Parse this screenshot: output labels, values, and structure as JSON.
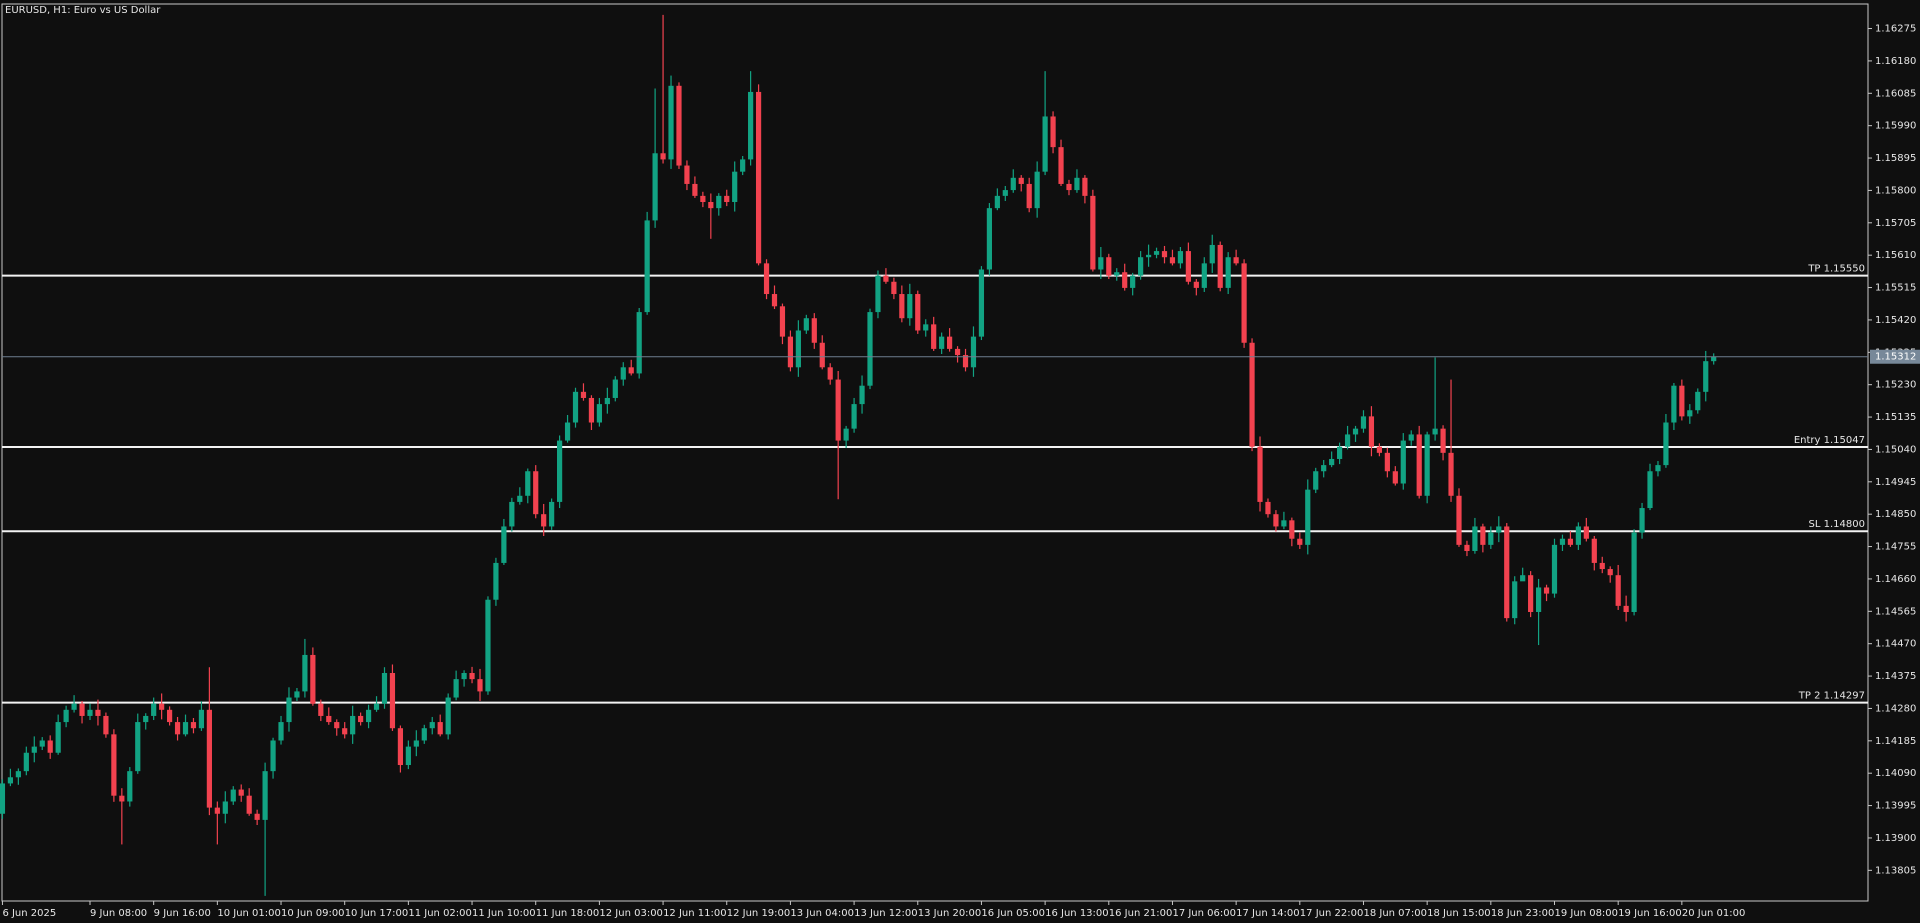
{
  "chart_data": {
    "type": "candlestick",
    "title": "EURUSD, H1:  Euro vs US Dollar",
    "up_color": "#12a383",
    "down_color": "#f2424f",
    "background": "#0f0f0f",
    "grid": false,
    "ylim": [
      1.13715,
      1.16347
    ],
    "yticks": [
      1.16275,
      {
        "value": 1.1618,
        "label": "1.16180"
      },
      1.16085,
      {
        "value": 1.1599,
        "label": "1.15990"
      },
      1.15895,
      {
        "value": 1.158,
        "label": "1.15800"
      },
      1.15705,
      {
        "value": 1.1561,
        "label": "1.15610"
      },
      1.15515,
      {
        "value": 1.1542,
        "label": "1.15420"
      },
      1.15325,
      {
        "value": 1.1523,
        "label": "1.15230"
      },
      1.15135,
      {
        "value": 1.1504,
        "label": "1.15040"
      },
      1.14945,
      {
        "value": 1.1485,
        "label": "1.14850"
      },
      1.14755,
      {
        "value": 1.1466,
        "label": "1.14660"
      },
      1.14565,
      {
        "value": 1.1447,
        "label": "1.14470"
      },
      1.14375,
      {
        "value": 1.1428,
        "label": "1.14280"
      },
      1.14185,
      {
        "value": 1.1409,
        "label": "1.14090"
      },
      1.13995,
      {
        "value": 1.139,
        "label": "1.13900"
      },
      1.13805
    ],
    "levels": [
      {
        "label": "TP 1.15550",
        "value": 1.1555
      },
      {
        "label": "Entry 1.15047",
        "value": 1.15047
      },
      {
        "label": "SL 1.14800",
        "value": 1.148
      },
      {
        "label": "TP 2 1.14297",
        "value": 1.14297
      }
    ],
    "categories": [
      "6 Jun 2025",
      null,
      null,
      null,
      null,
      null,
      null,
      null,
      null,
      null,
      null,
      "9 Jun 08:00",
      null,
      null,
      null,
      null,
      null,
      null,
      null,
      "9 Jun 16:00",
      null,
      null,
      null,
      null,
      null,
      null,
      null,
      "10 Jun 01:00",
      null,
      null,
      null,
      null,
      null,
      null,
      null,
      "10 Jun 09:00",
      null,
      null,
      null,
      null,
      null,
      null,
      null,
      "10 Jun 17:00",
      null,
      null,
      null,
      null,
      null,
      null,
      null,
      "11 Jun 02:00",
      null,
      null,
      null,
      null,
      null,
      null,
      null,
      "11 Jun 10:00",
      null,
      null,
      null,
      null,
      null,
      null,
      null,
      "11 Jun 18:00",
      null,
      null,
      null,
      null,
      null,
      null,
      null,
      "12 Jun 03:00",
      null,
      null,
      null,
      null,
      null,
      null,
      null,
      "12 Jun 11:00",
      null,
      null,
      null,
      null,
      null,
      null,
      null,
      "12 Jun 19:00",
      null,
      null,
      null,
      null,
      null,
      null,
      null,
      "13 Jun 04:00",
      null,
      null,
      null,
      null,
      null,
      null,
      null,
      "13 Jun 12:00",
      null,
      null,
      null,
      null,
      null,
      null,
      null,
      "13 Jun 20:00",
      null,
      null,
      null,
      null,
      null,
      null,
      null,
      "16 Jun 05:00",
      null,
      null,
      null,
      null,
      null,
      null,
      null,
      "16 Jun 13:00",
      null,
      null,
      null,
      null,
      null,
      null,
      null,
      "16 Jun 21:00",
      null,
      null,
      null,
      null,
      null,
      null,
      null,
      "17 Jun 06:00",
      null,
      null,
      null,
      null,
      null,
      null,
      null,
      "17 Jun 14:00",
      null,
      null,
      null,
      null,
      null,
      null,
      null,
      "17 Jun 22:00",
      null,
      null,
      null,
      null,
      null,
      null,
      null,
      "18 Jun 07:00",
      null,
      null,
      null,
      null,
      null,
      null,
      null,
      "18 Jun 15:00",
      null,
      null,
      null,
      null,
      null,
      null,
      null,
      "18 Jun 23:00",
      null,
      null,
      null,
      null,
      null,
      null,
      null,
      "19 Jun 08:00",
      null,
      null,
      null,
      null,
      null,
      null,
      null,
      "19 Jun 16:00",
      null,
      null,
      null,
      null,
      null,
      null,
      null,
      "20 Jun 01:00",
      null,
      null,
      null,
      null
    ],
    "open": [
      1.13971,
      1.1406,
      1.14078,
      1.14096,
      1.1415,
      1.14168,
      1.14186,
      1.1415,
      1.1424,
      1.14276,
      1.14294,
      1.14258,
      1.14276,
      1.14258,
      1.14204,
      1.14024,
      1.14007,
      1.14096,
      1.1424,
      1.14258,
      1.14294,
      1.14276,
      1.1424,
      1.14204,
      1.1424,
      1.14222,
      1.14276,
      1.13989,
      1.13971,
      1.14007,
      1.14042,
      1.14024,
      1.13971,
      1.13953,
      1.14096,
      1.14186,
      1.1424,
      1.14312,
      1.1433,
      1.14437,
      1.14294,
      1.14258,
      1.1424,
      1.14222,
      1.14204,
      1.14258,
      1.1424,
      1.14276,
      1.14294,
      1.14384,
      1.14222,
      1.14114,
      1.14168,
      1.14186,
      1.14222,
      1.1424,
      1.14204,
      1.14312,
      1.14366,
      1.14384,
      1.14366,
      1.1433,
      1.14599,
      1.14707,
      1.14814,
      1.14886,
      1.14904,
      1.14976,
      1.1485,
      1.14814,
      1.14886,
      1.15066,
      1.15119,
      1.15209,
      1.15191,
      1.15119,
      1.15173,
      1.15191,
      1.15245,
      1.15281,
      1.15263,
      1.15443,
      1.15712,
      1.15909,
      1.15891,
      1.16107,
      1.15873,
      1.15819,
      1.15784,
      1.15766,
      1.15748,
      1.15784,
      1.15766,
      1.15855,
      1.15891,
      1.16089,
      1.15586,
      1.15496,
      1.1546,
      1.15371,
      1.15281,
      1.15389,
      1.15425,
      1.15353,
      1.15281,
      1.15245,
      1.15066,
      1.15101,
      1.15173,
      1.15227,
      1.15443,
      1.1555,
      1.15532,
      1.15496,
      1.15425,
      1.15496,
      1.15389,
      1.15407,
      1.15335,
      1.15371,
      1.15335,
      1.15317,
      1.15281,
      1.15371,
      1.15568,
      1.15748,
      1.15784,
      1.15801,
      1.15837,
      1.15819,
      1.15748,
      1.15855,
      1.16017,
      1.15927,
      1.15819,
      1.15801,
      1.15837,
      1.15784,
      1.15568,
      1.15604,
      1.1555,
      1.1556,
      1.15514,
      1.1555,
      1.15604,
      1.15611,
      1.15622,
      1.15604,
      1.15586,
      1.15622,
      1.15532,
      1.15514,
      1.15586,
      1.1564,
      1.15514,
      1.15604,
      1.15586,
      1.15353,
      1.15048,
      1.14886,
      1.1485,
      1.14814,
      1.14832,
      1.14778,
      1.1476,
      1.14922,
      1.14976,
      1.14994,
      1.15012,
      1.15048,
      1.15084,
      1.15101,
      1.15137,
      1.15048,
      1.1503,
      1.14976,
      1.1494,
      1.15066,
      1.15084,
      1.14904,
      1.15084,
      1.15101,
      1.1503,
      1.14904,
      1.1476,
      1.14742,
      1.14814,
      1.1476,
      1.14796,
      1.14814,
      1.14545,
      1.14653,
      1.14671,
      1.14563,
      1.14635,
      1.14617,
      1.1476,
      1.14778,
      1.1476,
      1.14814,
      1.14778,
      1.14707,
      1.14689,
      1.14671,
      1.14581,
      1.14563,
      1.14796,
      1.14868,
      1.14976,
      1.14994,
      1.15119,
      1.15227,
      1.15137,
      1.15155,
      1.15209,
      1.15299
    ],
    "high": [
      1.14072,
      1.14103,
      1.14104,
      1.14168,
      1.14198,
      1.14196,
      1.14201,
      1.14262,
      1.14288,
      1.14319,
      1.14302,
      1.14294,
      1.14306,
      1.14268,
      1.14219,
      1.14046,
      1.14108,
      1.14265,
      1.14266,
      1.14312,
      1.14324,
      1.14286,
      1.14255,
      1.14262,
      1.14252,
      1.14301,
      1.14401,
      1.14007,
      1.14037,
      1.14052,
      1.14057,
      1.14046,
      1.13983,
      1.14121,
      1.14194,
      1.14258,
      1.14342,
      1.1434,
      1.14484,
      1.14459,
      1.14306,
      1.14283,
      1.14248,
      1.1424,
      1.14288,
      1.14268,
      1.14291,
      1.14316,
      1.14401,
      1.14409,
      1.1423,
      1.14186,
      1.14216,
      1.14232,
      1.14255,
      1.14262,
      1.14324,
      1.14391,
      1.14392,
      1.14402,
      1.14396,
      1.14609,
      1.14722,
      1.14836,
      1.14898,
      1.14929,
      1.14984,
      1.14994,
      1.1488,
      1.14896,
      1.15081,
      1.15141,
      1.15221,
      1.15234,
      1.15199,
      1.15191,
      1.15221,
      1.15255,
      1.15296,
      1.15303,
      1.15455,
      1.15737,
      1.16099,
      1.16315,
      1.16137,
      1.16117,
      1.15888,
      1.15841,
      1.15796,
      1.15791,
      1.15792,
      1.15802,
      1.15885,
      1.15901,
      1.1615,
      1.16111,
      1.15598,
      1.15521,
      1.15468,
      1.15389,
      1.15419,
      1.15435,
      1.1544,
      1.15375,
      1.15293,
      1.1527,
      1.15109,
      1.15191,
      1.15257,
      1.15453,
      1.15565,
      1.15572,
      1.15544,
      1.15521,
      1.15526,
      1.15506,
      1.15422,
      1.15429,
      1.15383,
      1.15396,
      1.15343,
      1.15335,
      1.15401,
      1.15578,
      1.15763,
      1.15806,
      1.15813,
      1.15862,
      1.15845,
      1.15837,
      1.15885,
      1.1615,
      1.16032,
      1.15949,
      1.15831,
      1.15862,
      1.15845,
      1.15802,
      1.15634,
      1.15614,
      1.15572,
      1.15585,
      1.15558,
      1.15622,
      1.15641,
      1.15632,
      1.15637,
      1.15626,
      1.15634,
      1.15647,
      1.1554,
      1.15604,
      1.1567,
      1.1565,
      1.15619,
      1.15626,
      1.15598,
      1.15366,
      1.15078,
      1.14896,
      1.14862,
      1.14857,
      1.1484,
      1.14796,
      1.14952,
      1.14986,
      1.15009,
      1.15034,
      1.1506,
      1.15109,
      1.15109,
      1.15155,
      1.15167,
      1.15058,
      1.15045,
      1.14991,
      1.15088,
      1.15096,
      1.15109,
      1.15092,
      1.1531,
      1.15111,
      1.15245,
      1.14926,
      1.14772,
      1.14839,
      1.14822,
      1.14814,
      1.14844,
      1.14824,
      1.14668,
      1.14693,
      1.14683,
      1.1466,
      1.14643,
      1.14778,
      1.1479,
      1.148,
      1.14826,
      1.14839,
      1.14786,
      1.14725,
      1.14697,
      1.14701,
      1.14611,
      1.14806,
      1.14883,
      1.14998,
      1.15006,
      1.15144,
      1.15235,
      1.15245,
      1.15173,
      1.15219,
      1.15329,
      1.15322
    ],
    "low": [
      1.13956,
      1.14052,
      1.14056,
      1.14084,
      1.14122,
      1.14158,
      1.14132,
      1.14144,
      1.14225,
      1.14268,
      1.14236,
      1.14246,
      1.1423,
      1.14194,
      1.14006,
      1.13881,
      1.13992,
      1.14088,
      1.14218,
      1.14246,
      1.14248,
      1.1423,
      1.14186,
      1.14198,
      1.14207,
      1.14214,
      1.13967,
      1.13881,
      1.13943,
      1.13997,
      1.14006,
      1.13965,
      1.13938,
      1.1373,
      1.14074,
      1.14174,
      1.14212,
      1.14302,
      1.14312,
      1.14288,
      1.14243,
      1.14232,
      1.142,
      1.14192,
      1.14176,
      1.1423,
      1.14222,
      1.1427,
      1.14279,
      1.14214,
      1.14092,
      1.14102,
      1.1414,
      1.14176,
      1.14204,
      1.14198,
      1.14189,
      1.14304,
      1.14344,
      1.14354,
      1.14302,
      1.1432,
      1.14581,
      1.14701,
      1.14799,
      1.14878,
      1.14882,
      1.14838,
      1.14786,
      1.14804,
      1.14868,
      1.1506,
      1.15104,
      1.15183,
      1.15097,
      1.15107,
      1.15145,
      1.15181,
      1.15227,
      1.15257,
      1.15248,
      1.15435,
      1.1569,
      1.15879,
      1.15863,
      1.15863,
      1.15801,
      1.15778,
      1.15751,
      1.15658,
      1.15726,
      1.15754,
      1.15738,
      1.15845,
      1.15873,
      1.1558,
      1.15481,
      1.15452,
      1.15349,
      1.15269,
      1.15253,
      1.15379,
      1.15335,
      1.15275,
      1.1523,
      1.14894,
      1.15044,
      1.15089,
      1.15145,
      1.15217,
      1.15425,
      1.15526,
      1.15481,
      1.15413,
      1.15403,
      1.15379,
      1.15371,
      1.15329,
      1.1532,
      1.15327,
      1.15295,
      1.15269,
      1.15253,
      1.15361,
      1.1555,
      1.15742,
      1.15769,
      1.15793,
      1.15797,
      1.15736,
      1.1572,
      1.15845,
      1.15909,
      1.15813,
      1.15786,
      1.15793,
      1.15762,
      1.15562,
      1.1554,
      1.1554,
      1.15535,
      1.15506,
      1.15492,
      1.15538,
      1.15576,
      1.15601,
      1.15586,
      1.1558,
      1.15571,
      1.15524,
      1.15492,
      1.15502,
      1.15558,
      1.15504,
      1.15496,
      1.1558,
      1.15338,
      1.15035,
      1.14858,
      1.1484,
      1.14799,
      1.14806,
      1.14756,
      1.14748,
      1.14732,
      1.14912,
      1.14958,
      1.14988,
      1.14997,
      1.1504,
      1.15062,
      1.15089,
      1.1502,
      1.1502,
      1.14958,
      1.14934,
      1.14922,
      1.15051,
      1.14896,
      1.14882,
      1.15066,
      1.15008,
      1.14886,
      1.14754,
      1.14727,
      1.14734,
      1.14738,
      1.14748,
      1.14768,
      1.14535,
      1.14527,
      1.14665,
      1.14548,
      1.14466,
      1.14595,
      1.14605,
      1.14742,
      1.14754,
      1.14745,
      1.1477,
      1.14685,
      1.14677,
      1.14649,
      1.14569,
      1.14535,
      1.14553,
      1.14778,
      1.14862,
      1.14961,
      1.14986,
      1.15097,
      1.15125,
      1.15115,
      1.15145,
      1.15181,
      1.15289
    ],
    "close": [
      1.1406,
      1.14078,
      1.14096,
      1.1415,
      1.14168,
      1.14186,
      1.1415,
      1.1424,
      1.14276,
      1.14294,
      1.14258,
      1.14276,
      1.14258,
      1.14204,
      1.14024,
      1.14007,
      1.14096,
      1.1424,
      1.14258,
      1.14294,
      1.14276,
      1.1424,
      1.14204,
      1.1424,
      1.14222,
      1.14276,
      1.13989,
      1.13971,
      1.14007,
      1.14042,
      1.14024,
      1.13971,
      1.13953,
      1.14096,
      1.14186,
      1.1424,
      1.14312,
      1.1433,
      1.14437,
      1.14294,
      1.14258,
      1.1424,
      1.14222,
      1.14204,
      1.14258,
      1.1424,
      1.14276,
      1.14294,
      1.14384,
      1.14222,
      1.14114,
      1.14168,
      1.14186,
      1.14222,
      1.1424,
      1.14204,
      1.14312,
      1.14366,
      1.14384,
      1.14366,
      1.1433,
      1.14599,
      1.14707,
      1.14814,
      1.14886,
      1.14904,
      1.14976,
      1.1485,
      1.14814,
      1.14886,
      1.15066,
      1.15119,
      1.15209,
      1.15191,
      1.15119,
      1.15173,
      1.15191,
      1.15245,
      1.15281,
      1.15263,
      1.15443,
      1.15712,
      1.15909,
      1.15891,
      1.16107,
      1.15873,
      1.15819,
      1.15784,
      1.15766,
      1.15748,
      1.15784,
      1.15766,
      1.15855,
      1.15891,
      1.16089,
      1.15586,
      1.15496,
      1.1546,
      1.15371,
      1.15281,
      1.15389,
      1.15425,
      1.15353,
      1.15281,
      1.15245,
      1.15066,
      1.15101,
      1.15173,
      1.15227,
      1.15443,
      1.1555,
      1.15532,
      1.15496,
      1.15425,
      1.15496,
      1.15389,
      1.15407,
      1.15335,
      1.15371,
      1.15335,
      1.15317,
      1.15281,
      1.15371,
      1.15568,
      1.15748,
      1.15784,
      1.15801,
      1.15837,
      1.15819,
      1.15748,
      1.15855,
      1.16017,
      1.15927,
      1.15819,
      1.15801,
      1.15837,
      1.15784,
      1.15568,
      1.15604,
      1.1555,
      1.1556,
      1.15514,
      1.1555,
      1.15604,
      1.15611,
      1.15622,
      1.15604,
      1.15586,
      1.15622,
      1.15532,
      1.15514,
      1.15586,
      1.1564,
      1.15514,
      1.15604,
      1.15586,
      1.15353,
      1.15048,
      1.14886,
      1.1485,
      1.14814,
      1.14832,
      1.14778,
      1.1476,
      1.14922,
      1.14976,
      1.14994,
      1.15012,
      1.15048,
      1.15084,
      1.15101,
      1.15137,
      1.15048,
      1.1503,
      1.14976,
      1.1494,
      1.15066,
      1.15084,
      1.14904,
      1.15084,
      1.15101,
      1.1503,
      1.14904,
      1.1476,
      1.14742,
      1.14814,
      1.1476,
      1.14796,
      1.14814,
      1.14545,
      1.14653,
      1.14671,
      1.14563,
      1.14635,
      1.14617,
      1.1476,
      1.14778,
      1.1476,
      1.14814,
      1.14778,
      1.14707,
      1.14689,
      1.14671,
      1.14581,
      1.14563,
      1.14796,
      1.14868,
      1.14976,
      1.14994,
      1.15119,
      1.15227,
      1.15137,
      1.15155,
      1.15209,
      1.15299,
      1.15312
    ]
  }
}
